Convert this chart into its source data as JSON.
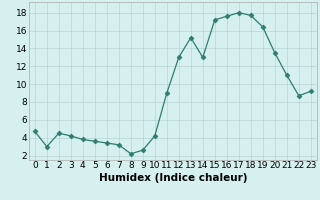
{
  "x": [
    0,
    1,
    2,
    3,
    4,
    5,
    6,
    7,
    8,
    9,
    10,
    11,
    12,
    13,
    14,
    15,
    16,
    17,
    18,
    19,
    20,
    21,
    22,
    23
  ],
  "y": [
    4.7,
    3.0,
    4.5,
    4.2,
    3.8,
    3.6,
    3.4,
    3.2,
    2.2,
    2.6,
    4.2,
    9.0,
    13.0,
    15.2,
    13.0,
    17.2,
    17.6,
    18.0,
    17.7,
    16.4,
    13.5,
    11.0,
    8.7,
    9.2
  ],
  "xlabel": "Humidex (Indice chaleur)",
  "xlim": [
    -0.5,
    23.5
  ],
  "ylim": [
    1.5,
    19.2
  ],
  "yticks": [
    2,
    4,
    6,
    8,
    10,
    12,
    14,
    16,
    18
  ],
  "xticks": [
    0,
    1,
    2,
    3,
    4,
    5,
    6,
    7,
    8,
    9,
    10,
    11,
    12,
    13,
    14,
    15,
    16,
    17,
    18,
    19,
    20,
    21,
    22,
    23
  ],
  "line_color": "#2e7d6e",
  "marker": "D",
  "marker_size": 2.5,
  "bg_color": "#d6f0f0",
  "grid_color": "#b8d4d4",
  "xlabel_fontsize": 7.5,
  "tick_fontsize": 6.5
}
